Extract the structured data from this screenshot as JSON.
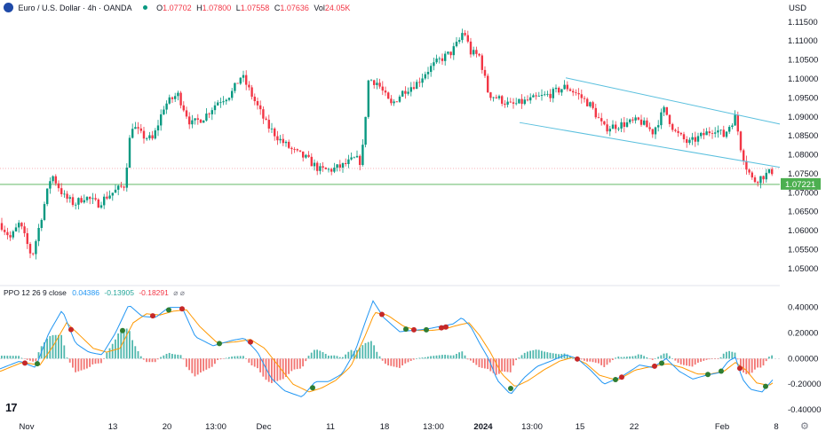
{
  "header": {
    "symbol_icon": "euro-flag-icon",
    "title": "Euro / U.S. Dollar · 4h · OANDA",
    "open_label": "O",
    "open": "1.07702",
    "high_label": "H",
    "high": "1.07800",
    "low_label": "L",
    "low": "1.07558",
    "close_label": "C",
    "close": "1.07636",
    "vol_label": "Vol",
    "vol": "24.05K",
    "currency": "USD",
    "status_dot_color": "#089981"
  },
  "ppo_header": {
    "label": "PPO 12 26 9 close",
    "v1": "0.04386",
    "v2": "-0.13905",
    "v3": "-0.18291",
    "icons": "⌀ ⌀"
  },
  "logo": "17",
  "settings_icon": "gear-icon",
  "colors": {
    "up": "#089981",
    "down": "#f23645",
    "ppo_line": "#2196f3",
    "signal_line": "#ff9800",
    "hist_pos": "#26a69a",
    "hist_neg": "#ef5350",
    "channel": "#5bc0de",
    "support": "#4caf50",
    "dotted": "#f7a6ae"
  },
  "chart_data": [
    {
      "type": "candlestick",
      "symbol": "Euro / U.S. Dollar",
      "timeframe": "4h",
      "ylim": [
        1.046,
        1.118
      ],
      "y_ticks": [
        "1.11500",
        "1.11000",
        "1.10500",
        "1.10000",
        "1.09500",
        "1.09000",
        "1.08500",
        "1.08000",
        "1.07500",
        "1.07000",
        "1.06500",
        "1.06000",
        "1.05500",
        "1.05000"
      ],
      "x_labels": [
        "Nov",
        "13",
        "20",
        "13:00",
        "Dec",
        "11",
        "18",
        "13:00",
        "2024",
        "13:00",
        "15",
        "22",
        "Feb",
        "8"
      ],
      "price_label": "1.07221",
      "anchors": [
        [
          0,
          1.062
        ],
        [
          12,
          1.058
        ],
        [
          22,
          1.062
        ],
        [
          36,
          1.053
        ],
        [
          48,
          1.065
        ],
        [
          58,
          1.075
        ],
        [
          72,
          1.069
        ],
        [
          84,
          1.067
        ],
        [
          95,
          1.069
        ],
        [
          110,
          1.067
        ],
        [
          120,
          1.069
        ],
        [
          140,
          1.072
        ],
        [
          148,
          1.088
        ],
        [
          160,
          1.085
        ],
        [
          172,
          1.084
        ],
        [
          185,
          1.093
        ],
        [
          200,
          1.096
        ],
        [
          215,
          1.088
        ],
        [
          230,
          1.09
        ],
        [
          245,
          1.094
        ],
        [
          260,
          1.096
        ],
        [
          272,
          1.101
        ],
        [
          285,
          1.095
        ],
        [
          300,
          1.088
        ],
        [
          315,
          1.084
        ],
        [
          330,
          1.081
        ],
        [
          345,
          1.079
        ],
        [
          360,
          1.076
        ],
        [
          372,
          1.076
        ],
        [
          385,
          1.077
        ],
        [
          400,
          1.079
        ],
        [
          407,
          1.078
        ],
        [
          415,
          1.1
        ],
        [
          425,
          1.099
        ],
        [
          440,
          1.093
        ],
        [
          455,
          1.097
        ],
        [
          470,
          1.099
        ],
        [
          480,
          1.102
        ],
        [
          495,
          1.105
        ],
        [
          508,
          1.107
        ],
        [
          517,
          1.11
        ],
        [
          522,
          1.113
        ],
        [
          530,
          1.107
        ],
        [
          540,
          1.106
        ],
        [
          550,
          1.096
        ],
        [
          560,
          1.095
        ],
        [
          575,
          1.093
        ],
        [
          590,
          1.094
        ],
        [
          605,
          1.095
        ],
        [
          620,
          1.096
        ],
        [
          637,
          1.098
        ],
        [
          650,
          1.096
        ],
        [
          665,
          1.093
        ],
        [
          680,
          1.087
        ],
        [
          700,
          1.088
        ],
        [
          720,
          1.089
        ],
        [
          735,
          1.086
        ],
        [
          748,
          1.092
        ],
        [
          760,
          1.086
        ],
        [
          775,
          1.083
        ],
        [
          790,
          1.085
        ],
        [
          805,
          1.087
        ],
        [
          815,
          1.085
        ],
        [
          822,
          1.088
        ],
        [
          828,
          1.09
        ],
        [
          834,
          1.082
        ],
        [
          840,
          1.077
        ],
        [
          848,
          1.073
        ],
        [
          856,
          1.074
        ],
        [
          864,
          1.075
        ],
        [
          872,
          1.076
        ]
      ]
    },
    {
      "type": "line",
      "name": "PPO 12 26 9 close",
      "ylim": [
        -0.42,
        0.48
      ],
      "y_ticks": [
        "0.40000",
        "0.20000",
        "0.00000",
        "-0.20000",
        "-0.40000"
      ],
      "ppo_anchors": [
        [
          0,
          -0.08
        ],
        [
          22,
          -0.02
        ],
        [
          40,
          -0.07
        ],
        [
          55,
          0.2
        ],
        [
          70,
          0.38
        ],
        [
          85,
          0.12
        ],
        [
          100,
          0.05
        ],
        [
          115,
          0.03
        ],
        [
          130,
          0.2
        ],
        [
          145,
          0.42
        ],
        [
          160,
          0.33
        ],
        [
          175,
          0.32
        ],
        [
          190,
          0.4
        ],
        [
          205,
          0.4
        ],
        [
          220,
          0.17
        ],
        [
          240,
          0.1
        ],
        [
          260,
          0.14
        ],
        [
          275,
          0.16
        ],
        [
          290,
          0.05
        ],
        [
          305,
          -0.15
        ],
        [
          320,
          -0.25
        ],
        [
          340,
          -0.3
        ],
        [
          355,
          -0.18
        ],
        [
          370,
          -0.18
        ],
        [
          385,
          -0.12
        ],
        [
          400,
          0.06
        ],
        [
          412,
          0.3
        ],
        [
          420,
          0.45
        ],
        [
          432,
          0.32
        ],
        [
          450,
          0.21
        ],
        [
          465,
          0.22
        ],
        [
          480,
          0.23
        ],
        [
          495,
          0.25
        ],
        [
          510,
          0.27
        ],
        [
          520,
          0.32
        ],
        [
          530,
          0.25
        ],
        [
          540,
          0.12
        ],
        [
          550,
          0.0
        ],
        [
          560,
          -0.17
        ],
        [
          575,
          -0.28
        ],
        [
          590,
          -0.15
        ],
        [
          605,
          -0.06
        ],
        [
          620,
          -0.02
        ],
        [
          637,
          0.03
        ],
        [
          650,
          0.0
        ],
        [
          665,
          -0.09
        ],
        [
          680,
          -0.2
        ],
        [
          700,
          -0.14
        ],
        [
          720,
          -0.05
        ],
        [
          735,
          -0.07
        ],
        [
          750,
          0.0
        ],
        [
          765,
          -0.1
        ],
        [
          780,
          -0.16
        ],
        [
          795,
          -0.13
        ],
        [
          810,
          -0.11
        ],
        [
          820,
          -0.02
        ],
        [
          828,
          0.01
        ],
        [
          836,
          -0.16
        ],
        [
          845,
          -0.24
        ],
        [
          858,
          -0.26
        ],
        [
          872,
          -0.15
        ]
      ],
      "signal_anchors": [
        [
          0,
          -0.1
        ],
        [
          25,
          -0.03
        ],
        [
          45,
          -0.05
        ],
        [
          60,
          0.1
        ],
        [
          75,
          0.28
        ],
        [
          90,
          0.18
        ],
        [
          105,
          0.08
        ],
        [
          120,
          0.05
        ],
        [
          135,
          0.08
        ],
        [
          150,
          0.28
        ],
        [
          165,
          0.35
        ],
        [
          180,
          0.34
        ],
        [
          195,
          0.37
        ],
        [
          210,
          0.38
        ],
        [
          225,
          0.25
        ],
        [
          245,
          0.12
        ],
        [
          265,
          0.13
        ],
        [
          282,
          0.15
        ],
        [
          298,
          0.08
        ],
        [
          315,
          -0.07
        ],
        [
          330,
          -0.2
        ],
        [
          348,
          -0.26
        ],
        [
          362,
          -0.23
        ],
        [
          378,
          -0.17
        ],
        [
          395,
          -0.06
        ],
        [
          410,
          0.16
        ],
        [
          422,
          0.36
        ],
        [
          436,
          0.34
        ],
        [
          455,
          0.25
        ],
        [
          470,
          0.22
        ],
        [
          485,
          0.22
        ],
        [
          500,
          0.23
        ],
        [
          515,
          0.26
        ],
        [
          528,
          0.28
        ],
        [
          540,
          0.18
        ],
        [
          552,
          0.05
        ],
        [
          565,
          -0.12
        ],
        [
          580,
          -0.22
        ],
        [
          595,
          -0.17
        ],
        [
          612,
          -0.09
        ],
        [
          630,
          -0.02
        ],
        [
          645,
          0.01
        ],
        [
          660,
          -0.04
        ],
        [
          675,
          -0.13
        ],
        [
          695,
          -0.17
        ],
        [
          715,
          -0.09
        ],
        [
          735,
          -0.06
        ],
        [
          752,
          -0.04
        ],
        [
          768,
          -0.07
        ],
        [
          785,
          -0.12
        ],
        [
          800,
          -0.12
        ],
        [
          815,
          -0.1
        ],
        [
          828,
          -0.03
        ],
        [
          840,
          -0.09
        ],
        [
          852,
          -0.19
        ],
        [
          866,
          -0.21
        ],
        [
          872,
          -0.18
        ]
      ],
      "crosses": [
        [
          28,
          "down"
        ],
        [
          42,
          "up"
        ],
        [
          80,
          "down"
        ],
        [
          138,
          "up"
        ],
        [
          172,
          "down"
        ],
        [
          190,
          "up"
        ],
        [
          205,
          "down"
        ],
        [
          247,
          "up"
        ],
        [
          282,
          "down"
        ],
        [
          352,
          "up"
        ],
        [
          430,
          "down"
        ],
        [
          457,
          "up"
        ],
        [
          466,
          "down"
        ],
        [
          480,
          "up"
        ],
        [
          497,
          "down"
        ],
        [
          502,
          "down"
        ],
        [
          575,
          "up"
        ],
        [
          650,
          "down"
        ],
        [
          693,
          "up"
        ],
        [
          700,
          "down"
        ],
        [
          737,
          "down"
        ],
        [
          745,
          "up"
        ],
        [
          797,
          "up"
        ],
        [
          812,
          "up"
        ],
        [
          833,
          "down"
        ],
        [
          862,
          "up"
        ]
      ]
    }
  ]
}
